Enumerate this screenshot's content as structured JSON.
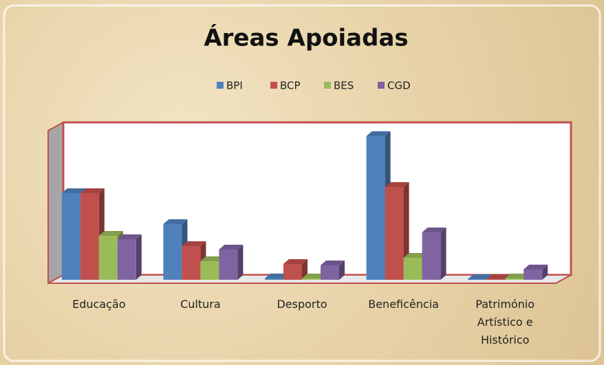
{
  "chart_data": {
    "type": "bar3d",
    "title": "Áreas Apoiadas",
    "categories": [
      "Educação",
      "Cultura",
      "Desporto",
      "Beneficência",
      "Património Artístico e Histórico"
    ],
    "series": [
      {
        "name": "BPI",
        "color": "#4f81bd",
        "values": [
          126,
          81,
          2,
          209,
          1
        ]
      },
      {
        "name": "BCP",
        "color": "#c0504d",
        "values": [
          126,
          49,
          23,
          135,
          1
        ]
      },
      {
        "name": "BES",
        "color": "#9bbb59",
        "values": [
          64,
          27,
          2,
          32,
          2
        ]
      },
      {
        "name": "CGD",
        "color": "#8064a2",
        "values": [
          59,
          44,
          21,
          69,
          15
        ]
      }
    ],
    "ylim": [
      0,
      220
    ],
    "legend": "top"
  }
}
